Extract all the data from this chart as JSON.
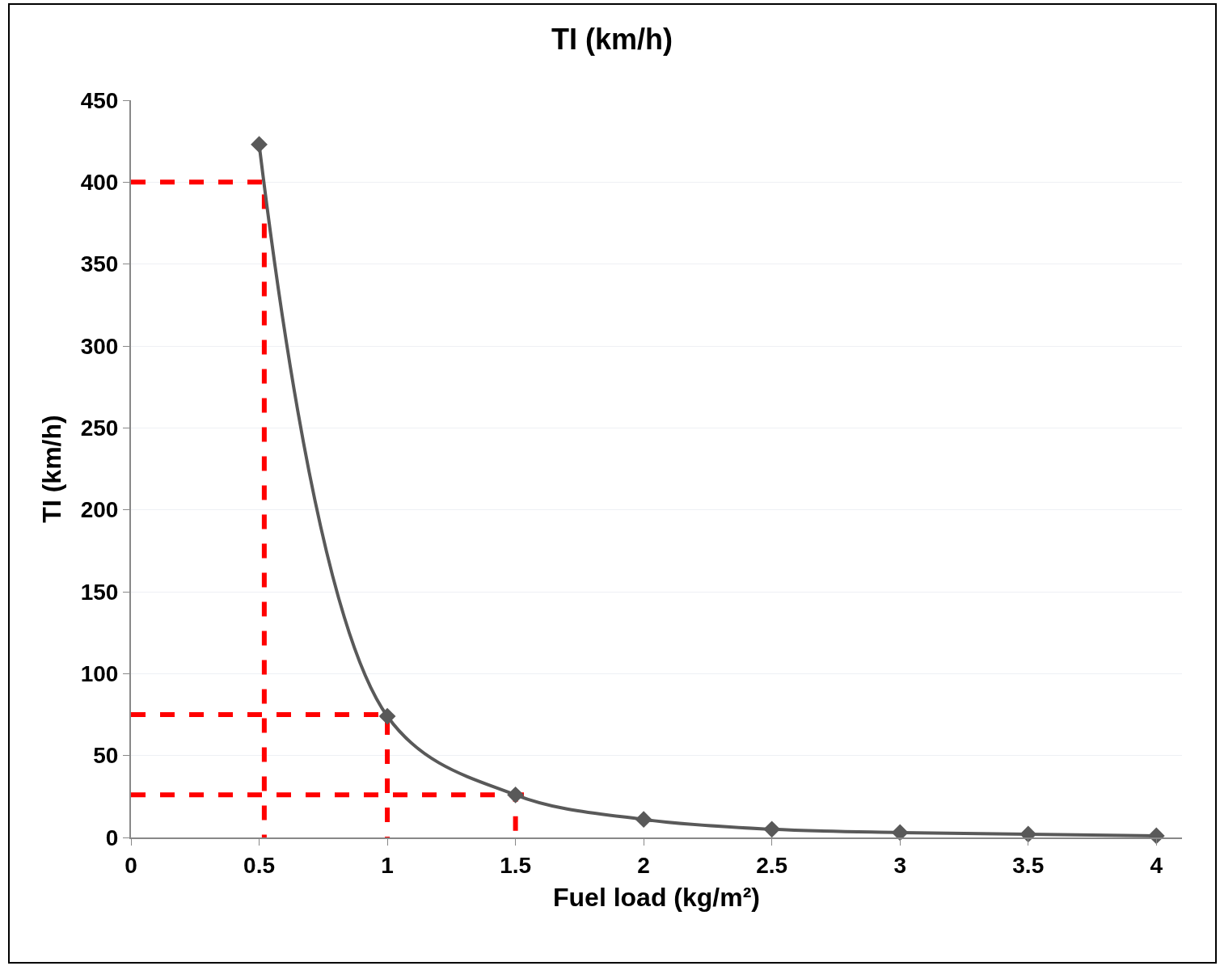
{
  "chart_data": {
    "type": "line",
    "title": "TI (km/h)",
    "xlabel": "Fuel load (kg/m²)",
    "ylabel": "TI (km/h)",
    "x": [
      0.5,
      1,
      1.5,
      2,
      2.5,
      3,
      3.5,
      4
    ],
    "series": [
      {
        "color": "#595959",
        "values": [
          423,
          74,
          26,
          11,
          5,
          3,
          2,
          1
        ],
        "marker": "diamond",
        "line_style": "solid"
      },
      {
        "color": "#ff0000",
        "x": [
          0,
          0.52,
          0.52
        ],
        "values": [
          400,
          400,
          0
        ],
        "marker": "none",
        "line_style": "dashed"
      },
      {
        "color": "#ff0000",
        "x": [
          0,
          1,
          1
        ],
        "values": [
          75,
          75,
          0
        ],
        "marker": "none",
        "line_style": "dashed"
      },
      {
        "color": "#ff0000",
        "x": [
          0,
          1.56,
          1.5,
          1.5
        ],
        "values": [
          26,
          26,
          26,
          0
        ],
        "marker": "none",
        "line_style": "dashed"
      }
    ],
    "xlim": [
      0,
      4.1
    ],
    "xticks": [
      0,
      0.5,
      1,
      1.5,
      2,
      2.5,
      3,
      3.5,
      4
    ],
    "ylim": [
      0,
      450
    ],
    "yticks": [
      0,
      50,
      100,
      150,
      200,
      250,
      300,
      350,
      400,
      450
    ],
    "grid": "y"
  }
}
